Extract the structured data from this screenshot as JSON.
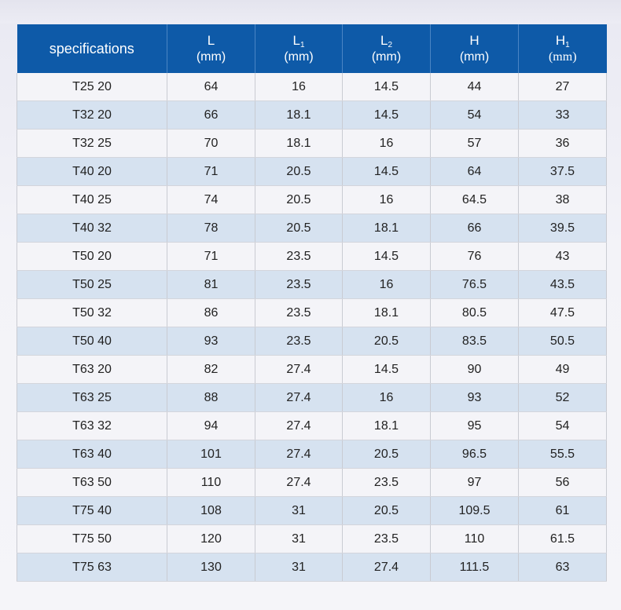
{
  "table": {
    "header": {
      "spec": "specifications",
      "cols": [
        {
          "sym": "L",
          "sub": "",
          "unit": "(mm)"
        },
        {
          "sym": "L",
          "sub": "1",
          "unit": "(mm)"
        },
        {
          "sym": "L",
          "sub": "2",
          "unit": "(mm)"
        },
        {
          "sym": "H",
          "sub": "",
          "unit": "(mm)"
        },
        {
          "sym": "H",
          "sub": "1",
          "unit": "(mm)"
        }
      ]
    },
    "rows": [
      [
        "T25 20",
        "64",
        "16",
        "14.5",
        "44",
        "27"
      ],
      [
        "T32 20",
        "66",
        "18.1",
        "14.5",
        "54",
        "33"
      ],
      [
        "T32 25",
        "70",
        "18.1",
        "16",
        "57",
        "36"
      ],
      [
        "T40 20",
        "71",
        "20.5",
        "14.5",
        "64",
        "37.5"
      ],
      [
        "T40 25",
        "74",
        "20.5",
        "16",
        "64.5",
        "38"
      ],
      [
        "T40 32",
        "78",
        "20.5",
        "18.1",
        "66",
        "39.5"
      ],
      [
        "T50 20",
        "71",
        "23.5",
        "14.5",
        "76",
        "43"
      ],
      [
        "T50 25",
        "81",
        "23.5",
        "16",
        "76.5",
        "43.5"
      ],
      [
        "T50 32",
        "86",
        "23.5",
        "18.1",
        "80.5",
        "47.5"
      ],
      [
        "T50 40",
        "93",
        "23.5",
        "20.5",
        "83.5",
        "50.5"
      ],
      [
        "T63 20",
        "82",
        "27.4",
        "14.5",
        "90",
        "49"
      ],
      [
        "T63 25",
        "88",
        "27.4",
        "16",
        "93",
        "52"
      ],
      [
        "T63 32",
        "94",
        "27.4",
        "18.1",
        "95",
        "54"
      ],
      [
        "T63 40",
        "101",
        "27.4",
        "20.5",
        "96.5",
        "55.5"
      ],
      [
        "T63 50",
        "110",
        "27.4",
        "23.5",
        "97",
        "56"
      ],
      [
        "T75 40",
        "108",
        "31",
        "20.5",
        "109.5",
        "61"
      ],
      [
        "T75 50",
        "120",
        "31",
        "23.5",
        "110",
        "61.5"
      ],
      [
        "T75 63",
        "130",
        "31",
        "27.4",
        "111.5",
        "63"
      ]
    ]
  },
  "colors": {
    "header_bg": "#0e5aa8",
    "row_light": "#f4f4f8",
    "row_blue": "#d6e2f0"
  }
}
